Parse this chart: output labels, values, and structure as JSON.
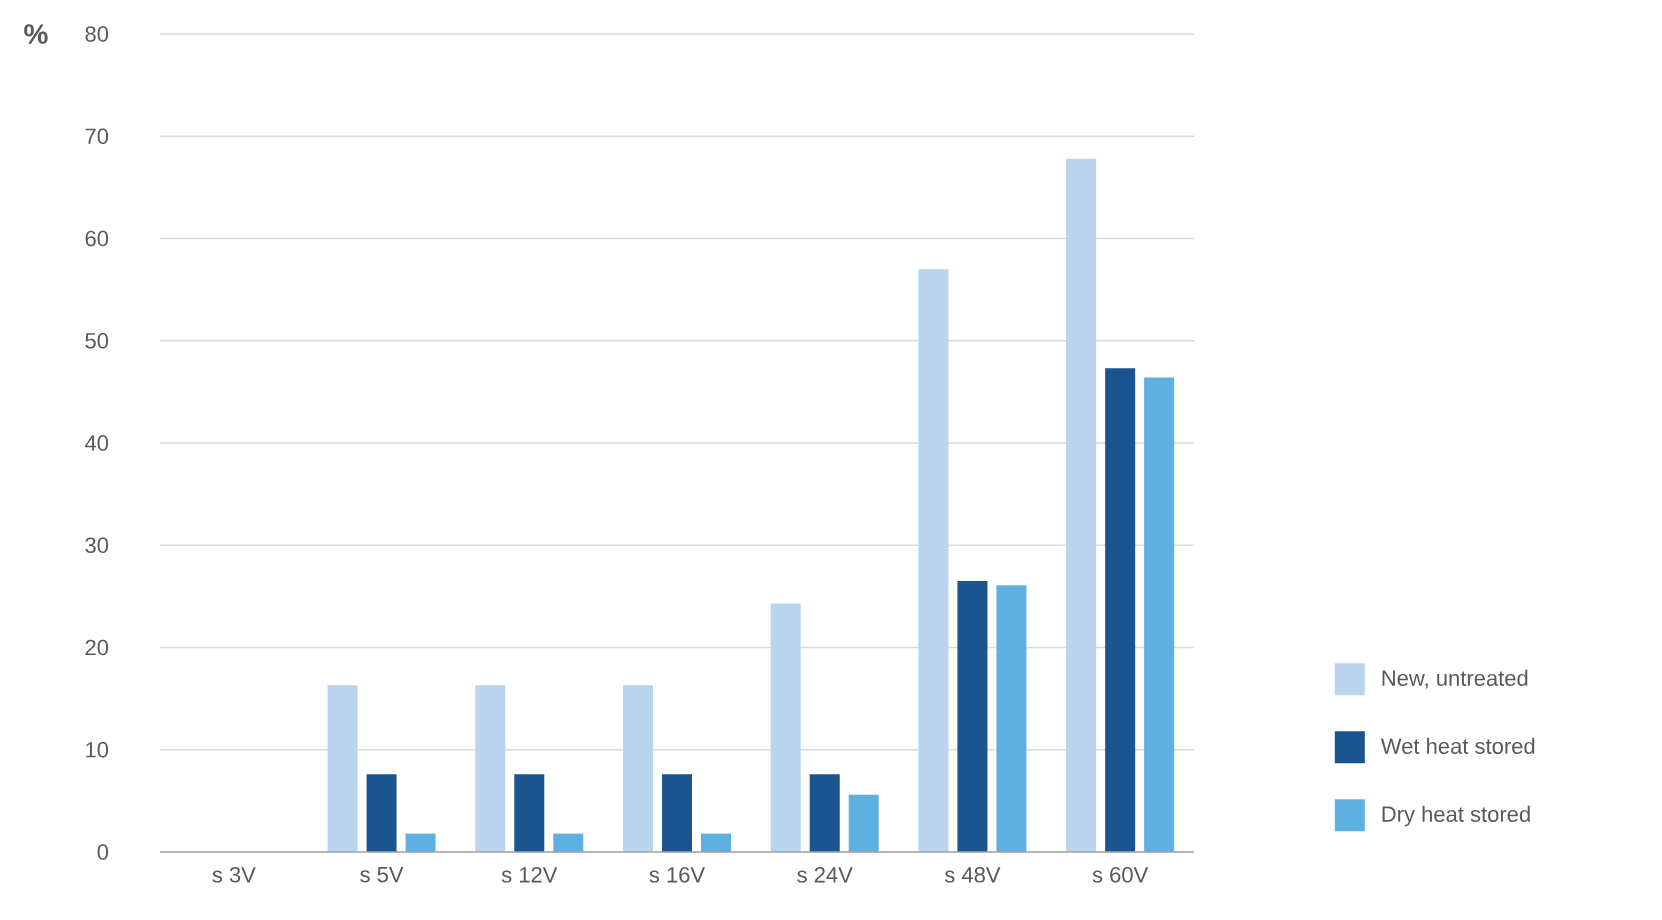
{
  "chart_data": {
    "type": "bar",
    "ylabel": "%",
    "categories": [
      "s 3V",
      "s 5V",
      "s 12V",
      "s 16V",
      "s 24V",
      "s 48V",
      "s 60V"
    ],
    "series": [
      {
        "name": "New, untreated",
        "color": "#b9d4ef",
        "values": [
          0,
          16.3,
          16.3,
          16.3,
          24.3,
          57.0,
          67.8
        ]
      },
      {
        "name": "Wet heat stored",
        "color": "#1b548f",
        "values": [
          0,
          7.6,
          7.6,
          7.6,
          7.6,
          26.5,
          47.3
        ]
      },
      {
        "name": "Dry heat stored",
        "color": "#5eb0e0",
        "values": [
          0,
          1.8,
          1.8,
          1.8,
          5.6,
          26.1,
          46.4
        ]
      }
    ],
    "ylim": [
      0,
      80
    ],
    "yticks": [
      0,
      10,
      20,
      30,
      40,
      50,
      60,
      70,
      80
    ],
    "grid": "y",
    "legend": "bottom right"
  }
}
